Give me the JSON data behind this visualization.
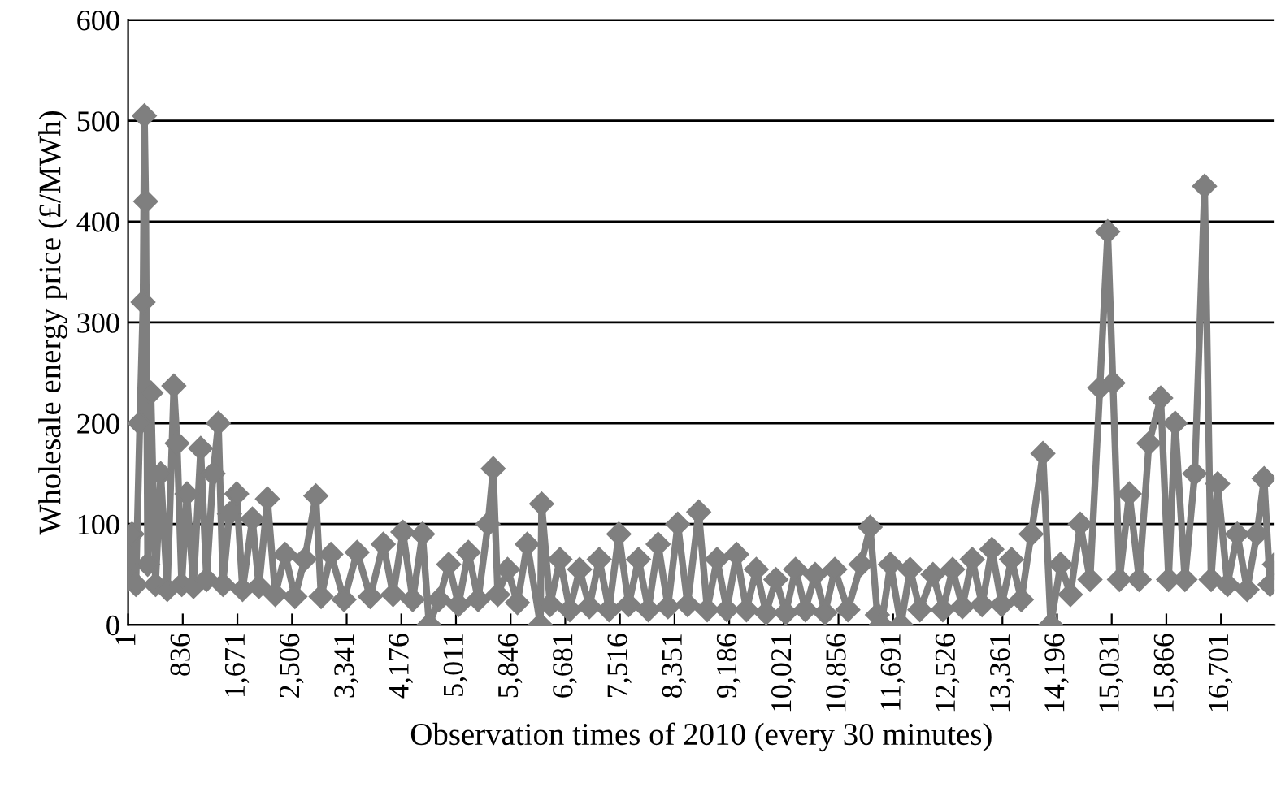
{
  "chart_data": {
    "type": "line",
    "xlabel": "Observation times of 2010 (every 30 minutes)",
    "ylabel": "Wholesale energy price (£/MWh)",
    "xlim": [
      1,
      17520
    ],
    "ylim": [
      0,
      600
    ],
    "yticks": [
      0,
      100,
      200,
      300,
      400,
      500,
      600
    ],
    "xticks": [
      1,
      836,
      {
        "value": 1671,
        "label": "1,671"
      },
      {
        "value": 2506,
        "label": "2,506"
      },
      {
        "value": 3341,
        "label": "3,341"
      },
      {
        "value": 4176,
        "label": "4,176"
      },
      {
        "value": 5011,
        "label": "5,011"
      },
      {
        "value": 5846,
        "label": "5,846"
      },
      {
        "value": 6681,
        "label": "6,681"
      },
      {
        "value": 7516,
        "label": "7,516"
      },
      {
        "value": 8351,
        "label": "8,351"
      },
      {
        "value": 9186,
        "label": "9,186"
      },
      {
        "value": 10021,
        "label": "10,021"
      },
      {
        "value": 10856,
        "label": "10,856"
      },
      {
        "value": 11691,
        "label": "11,691"
      },
      {
        "value": 12526,
        "label": "12,526"
      },
      {
        "value": 13361,
        "label": "13,361"
      },
      {
        "value": 14196,
        "label": "14,196"
      },
      {
        "value": 15031,
        "label": "15,031"
      },
      {
        "value": 15866,
        "label": "15,866"
      },
      {
        "value": 16701,
        "label": "16,701"
      }
    ],
    "grid": "y",
    "marker": "diamond",
    "line_style": "solid",
    "series": [
      {
        "color": "#7f7f7f",
        "x": [
          1,
          60,
          120,
          180,
          230,
          250,
          270,
          300,
          350,
          420,
          500,
          600,
          700,
          750,
          820,
          900,
          1000,
          1110,
          1200,
          1300,
          1380,
          1450,
          1550,
          1660,
          1750,
          1900,
          2000,
          2130,
          2250,
          2400,
          2550,
          2700,
          2870,
          2950,
          3100,
          3300,
          3500,
          3700,
          3900,
          4050,
          4200,
          4350,
          4500,
          4600,
          4750,
          4900,
          5050,
          5200,
          5350,
          5500,
          5580,
          5650,
          5800,
          5950,
          6100,
          6300,
          6320,
          6450,
          6600,
          6750,
          6900,
          7050,
          7200,
          7350,
          7500,
          7650,
          7800,
          7950,
          8100,
          8250,
          8400,
          8550,
          8720,
          8850,
          9000,
          9150,
          9300,
          9450,
          9600,
          9750,
          9900,
          10050,
          10200,
          10350,
          10500,
          10650,
          10800,
          11000,
          11200,
          11340,
          11450,
          11510,
          11650,
          11810,
          11950,
          12100,
          12300,
          12450,
          12600,
          12750,
          12900,
          13050,
          13200,
          13350,
          13500,
          13650,
          13800,
          13980,
          14100,
          14250,
          14400,
          14550,
          14700,
          14850,
          14970,
          15050,
          15150,
          15300,
          15450,
          15600,
          15780,
          15900,
          16000,
          16150,
          16300,
          16450,
          16550,
          16650,
          16800,
          16950,
          17100,
          17250,
          17360,
          17450,
          17520
        ],
        "values": [
          45,
          90,
          40,
          200,
          320,
          505,
          420,
          60,
          230,
          40,
          150,
          35,
          237,
          180,
          40,
          130,
          38,
          175,
          45,
          150,
          200,
          40,
          110,
          130,
          35,
          105,
          38,
          125,
          30,
          70,
          28,
          65,
          128,
          28,
          70,
          25,
          72,
          28,
          80,
          30,
          92,
          25,
          90,
          0,
          25,
          60,
          20,
          72,
          25,
          100,
          155,
          30,
          55,
          22,
          80,
          0,
          120,
          20,
          65,
          15,
          55,
          18,
          65,
          15,
          90,
          20,
          65,
          15,
          80,
          18,
          100,
          20,
          112,
          15,
          65,
          15,
          70,
          15,
          55,
          12,
          45,
          12,
          55,
          15,
          50,
          12,
          55,
          15,
          60,
          97,
          10,
          0,
          60,
          0,
          55,
          15,
          50,
          15,
          55,
          18,
          65,
          20,
          75,
          20,
          65,
          25,
          90,
          170,
          0,
          60,
          30,
          100,
          45,
          235,
          390,
          240,
          45,
          130,
          45,
          180,
          225,
          45,
          200,
          45,
          150,
          435,
          45,
          140,
          40,
          90,
          35,
          90,
          145,
          40,
          60
        ]
      }
    ]
  }
}
